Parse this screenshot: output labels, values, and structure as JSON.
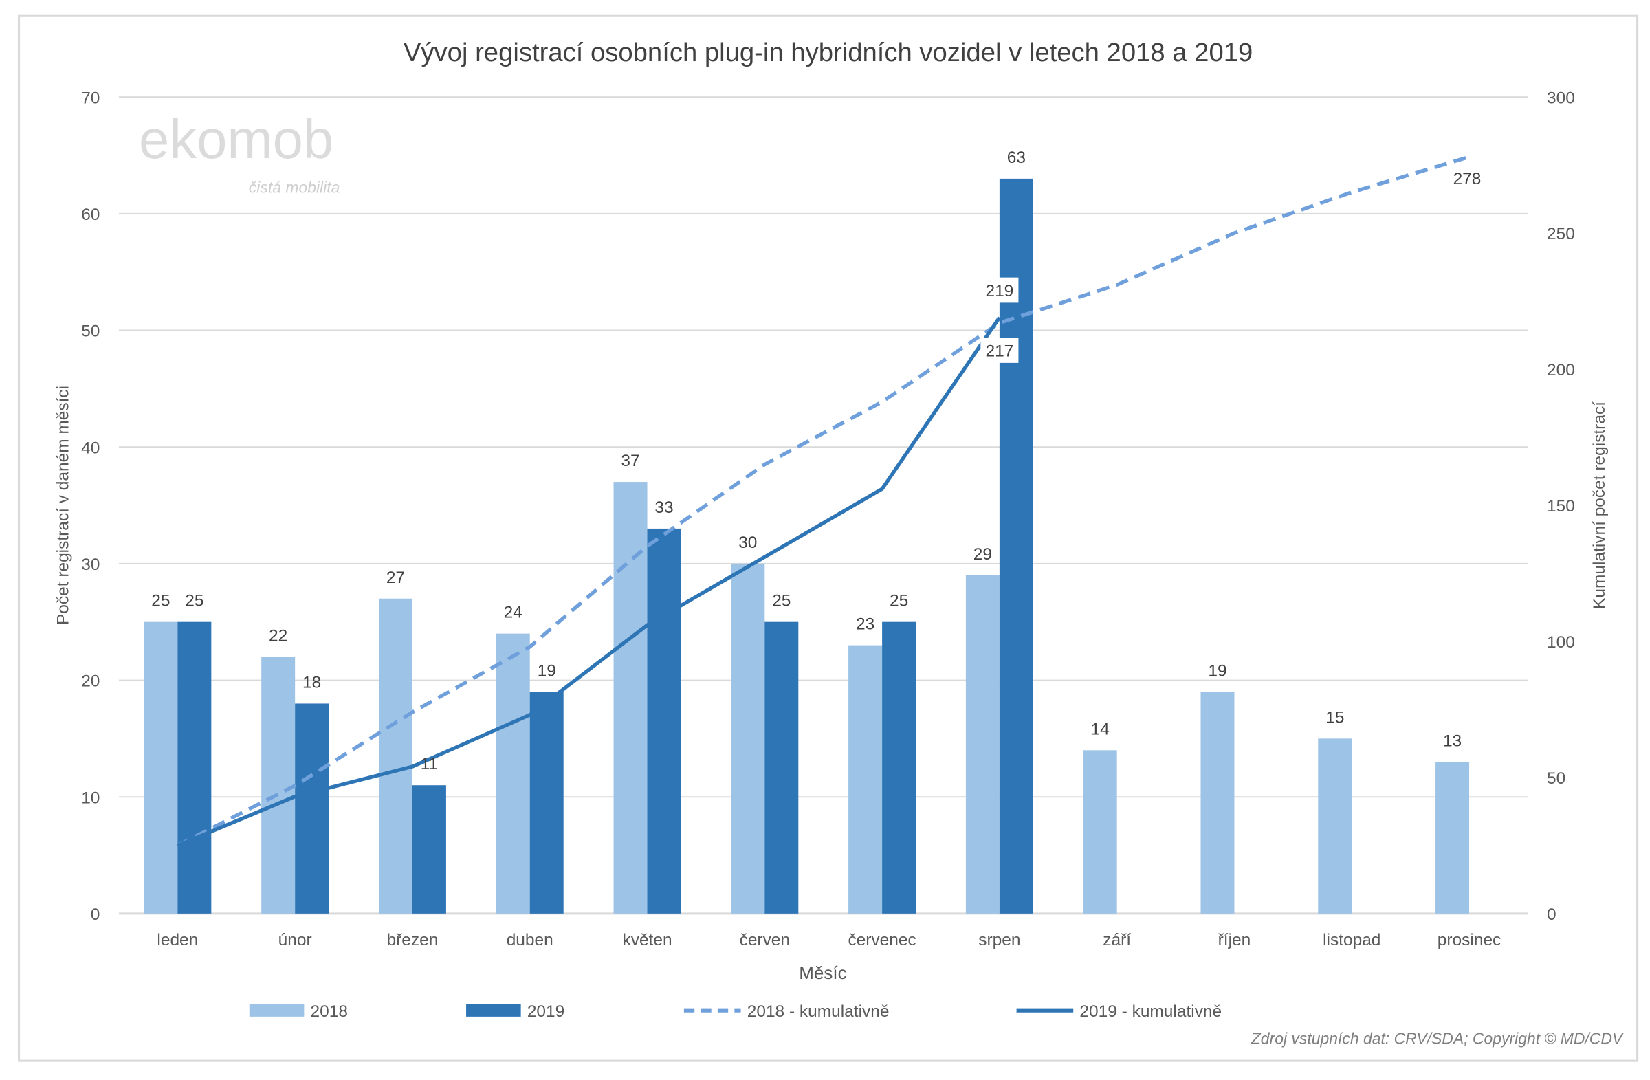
{
  "chart_data": {
    "type": "bar+line",
    "title": "Vývoj registrací osobních plug-in hybridních vozidel v letech 2018 a 2019",
    "xlabel": "Měsíc",
    "ylabel": "Počet registrací v daném měsíci",
    "y2label": "Kumulativní počet registrací",
    "ylim": [
      0,
      70
    ],
    "yticks": [
      0,
      10,
      20,
      30,
      40,
      50,
      60,
      70
    ],
    "y2lim": [
      0,
      300
    ],
    "y2ticks": [
      0,
      50,
      100,
      150,
      200,
      250,
      300
    ],
    "grid": true,
    "legend_position": "bottom",
    "categories": [
      "leden",
      "únor",
      "březen",
      "duben",
      "květen",
      "červen",
      "červenec",
      "srpen",
      "září",
      "říjen",
      "listopad",
      "prosinec"
    ],
    "series": [
      {
        "name": "2018",
        "type": "bar",
        "axis": "left",
        "color": "#9DC3E6",
        "values": [
          25,
          22,
          27,
          24,
          37,
          30,
          23,
          29,
          14,
          19,
          15,
          13
        ]
      },
      {
        "name": "2019",
        "type": "bar",
        "axis": "left",
        "color": "#2E75B6",
        "values": [
          25,
          18,
          11,
          19,
          33,
          25,
          25,
          63,
          null,
          null,
          null,
          null
        ]
      },
      {
        "name": "2018 - kumulativně",
        "type": "line",
        "style": "dashed",
        "axis": "right",
        "color": "#6FA0DC",
        "values": [
          25,
          47,
          74,
          98,
          135,
          165,
          188,
          217,
          231,
          250,
          265,
          278
        ],
        "labeled_points": {
          "7": "217",
          "11": "278"
        }
      },
      {
        "name": "2019 - kumulativně",
        "type": "line",
        "style": "solid",
        "axis": "right",
        "color": "#2E75B6",
        "values": [
          25,
          43,
          54,
          73,
          106,
          131,
          156,
          219,
          null,
          null,
          null,
          null
        ],
        "labeled_points": {
          "7": "219"
        }
      }
    ]
  },
  "watermark": {
    "logo": "ekomob",
    "tagline": "čistá mobilita"
  },
  "source_note": "Zdroj vstupních dat: CRV/SDA; Copyright © MD/CDV"
}
